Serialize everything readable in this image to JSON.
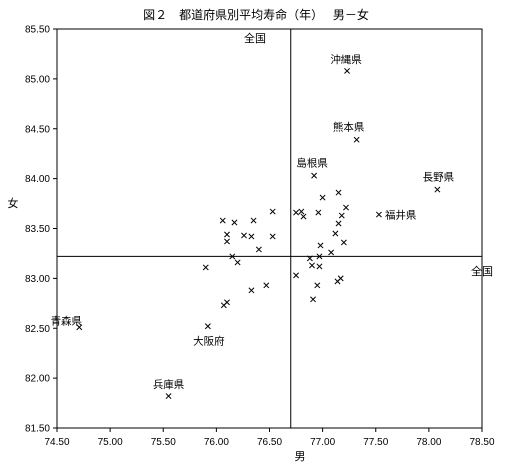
{
  "chart_data": {
    "type": "scatter",
    "title": "図２　都道府県別平均寿命（年）　 男－女",
    "xlabel": "男",
    "ylabel": "女",
    "xlim": [
      74.5,
      78.5
    ],
    "ylim": [
      81.5,
      85.5
    ],
    "x_ticks": [
      "74.50",
      "75.00",
      "75.50",
      "76.00",
      "76.50",
      "77.00",
      "77.50",
      "78.00",
      "78.50"
    ],
    "y_ticks": [
      "81.50",
      "82.00",
      "82.50",
      "83.00",
      "83.50",
      "84.00",
      "84.50",
      "85.00",
      "85.50"
    ],
    "grid": false,
    "reference_lines": [
      {
        "axis": "x",
        "value": 76.7,
        "label": "全国"
      },
      {
        "axis": "y",
        "value": 83.22,
        "label": "全国"
      }
    ],
    "points": [
      {
        "x": 74.71,
        "y": 82.51,
        "label": "青森県"
      },
      {
        "x": 75.55,
        "y": 81.82,
        "label": "兵庫県"
      },
      {
        "x": 75.92,
        "y": 82.52,
        "label": "大阪府"
      },
      {
        "x": 75.9,
        "y": 83.11
      },
      {
        "x": 76.07,
        "y": 82.73
      },
      {
        "x": 76.1,
        "y": 82.76
      },
      {
        "x": 76.06,
        "y": 83.58
      },
      {
        "x": 76.1,
        "y": 83.44
      },
      {
        "x": 76.1,
        "y": 83.37
      },
      {
        "x": 76.17,
        "y": 83.56
      },
      {
        "x": 76.15,
        "y": 83.22
      },
      {
        "x": 76.2,
        "y": 83.16
      },
      {
        "x": 76.26,
        "y": 83.43
      },
      {
        "x": 76.33,
        "y": 83.42
      },
      {
        "x": 76.35,
        "y": 83.58
      },
      {
        "x": 76.4,
        "y": 83.29
      },
      {
        "x": 76.33,
        "y": 82.88
      },
      {
        "x": 76.47,
        "y": 82.93
      },
      {
        "x": 76.53,
        "y": 83.42
      },
      {
        "x": 76.53,
        "y": 83.67
      },
      {
        "x": 76.75,
        "y": 83.66
      },
      {
        "x": 76.8,
        "y": 83.67
      },
      {
        "x": 76.82,
        "y": 83.62
      },
      {
        "x": 76.75,
        "y": 83.03
      },
      {
        "x": 76.88,
        "y": 83.2
      },
      {
        "x": 76.9,
        "y": 83.13
      },
      {
        "x": 76.97,
        "y": 83.12
      },
      {
        "x": 76.97,
        "y": 83.22
      },
      {
        "x": 76.98,
        "y": 83.33
      },
      {
        "x": 77.0,
        "y": 83.81
      },
      {
        "x": 76.95,
        "y": 82.93
      },
      {
        "x": 76.91,
        "y": 82.79
      },
      {
        "x": 76.96,
        "y": 83.66
      },
      {
        "x": 77.08,
        "y": 83.26
      },
      {
        "x": 77.12,
        "y": 83.45
      },
      {
        "x": 77.15,
        "y": 83.55
      },
      {
        "x": 77.15,
        "y": 83.86
      },
      {
        "x": 77.2,
        "y": 83.36
      },
      {
        "x": 77.22,
        "y": 83.71
      },
      {
        "x": 77.14,
        "y": 82.97
      },
      {
        "x": 77.17,
        "y": 83.0
      },
      {
        "x": 77.18,
        "y": 83.63
      },
      {
        "x": 76.92,
        "y": 84.03,
        "label": "島根県"
      },
      {
        "x": 77.32,
        "y": 84.39,
        "label": "熊本県"
      },
      {
        "x": 77.23,
        "y": 85.08,
        "label": "沖縄県"
      },
      {
        "x": 78.08,
        "y": 83.89,
        "label": "長野県"
      },
      {
        "x": 77.53,
        "y": 83.64,
        "label": "福井県"
      }
    ]
  }
}
